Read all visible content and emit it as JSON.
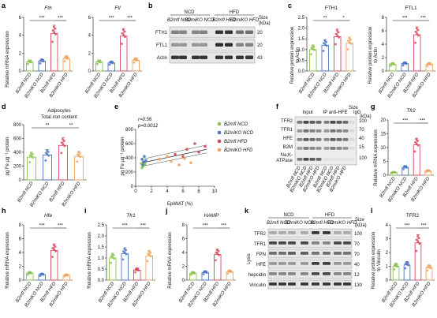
{
  "colors": {
    "green": "#8dc34a",
    "blue": "#4d73c9",
    "red": "#d9475d",
    "orange": "#f1a35e"
  },
  "groups": [
    "B2mfl NCD",
    "B2miKO NCD",
    "B2mfl HFD",
    "B2miKO HFD"
  ],
  "panels": {
    "a": {
      "letter": "a",
      "ylabel": "Relative mRNA expression",
      "p1title": "Fth",
      "p2title": "Ftl",
      "sig": [
        "***",
        "***"
      ]
    },
    "b": {
      "letter": "b",
      "ncd": "NCD",
      "hfd": "HFD",
      "size": "Size",
      "kda": "(kDa)",
      "rows": [
        "FTH1",
        "FTL1",
        "Actin"
      ],
      "sizes": [
        "20",
        "20",
        "43"
      ]
    },
    "c": {
      "letter": "c",
      "ylabel1": "Relative protein expression",
      "ylabel2": "to Actin",
      "p1title": "FTH1",
      "p2title": "FTL1",
      "sig1": [
        "**",
        "*"
      ],
      "sig2": [
        "***",
        "***"
      ]
    },
    "d": {
      "letter": "d",
      "title1": "Adipocytes",
      "title2": "Total iron content",
      "ylabel": "pg Fe μg⁻¹ protein",
      "sig": [
        "**",
        "**"
      ]
    },
    "e": {
      "letter": "e",
      "r": "r=0.56",
      "p": "p=0.0012",
      "ylabel": "pg Fe μg⁻¹ protein",
      "xlabel": "EpiWAT (%)",
      "legend": [
        "B2mfl NCD",
        "B2miKO NCD",
        "B2mfl HFD",
        "B2miKO HFD"
      ]
    },
    "f": {
      "letter": "f",
      "input": "Input",
      "ip": "IP anti-HFE",
      "igg": "IgG",
      "size": "Size",
      "kda": "(kDa)",
      "rows": [
        "TFR2",
        "TFR1",
        "HFE",
        "B2M",
        "Na,K-",
        "ATPase"
      ],
      "sizes": [
        "100",
        "70",
        "40",
        "15",
        "100"
      ]
    },
    "g": {
      "letter": "g",
      "title": "Tfr2",
      "ylabel": "Relative mRNA expression",
      "sig": [
        "***",
        "***"
      ]
    },
    "h": {
      "letter": "h",
      "title": "Hfe",
      "ylabel": "Relative mRNA expression",
      "sig": [
        "***",
        "***"
      ]
    },
    "i": {
      "letter": "i",
      "title": "Tfr1",
      "ylabel": "Relative mRNA expression",
      "sig": [
        "***",
        "***"
      ]
    },
    "j": {
      "letter": "j",
      "title": "HAMP",
      "ylabel": "Relative mRNA expression",
      "sig": [
        "***",
        "***"
      ]
    },
    "k": {
      "letter": "k",
      "ncd": "NCD",
      "hfd": "HFD",
      "size": "Size",
      "kda": "(kDa)",
      "lysis": "Lysis",
      "rows": [
        "TFR2",
        "TFR1",
        "FPN",
        "HFE",
        "hepcidin",
        "Vinculin"
      ],
      "sizes": [
        "100",
        "70",
        "70",
        "40",
        "12",
        "130"
      ]
    },
    "l": {
      "letter": "l",
      "title": "TFR2",
      "ylabel1": "Relative protein expression",
      "ylabel2": "to Vinculin",
      "sig": [
        "***",
        "***"
      ]
    }
  },
  "chart_data": [
    {
      "panel": "a",
      "title": "Fth",
      "type": "bar",
      "categories": [
        "B2mfl NCD",
        "B2miKO NCD",
        "B2mfl HFD",
        "B2miKO HFD"
      ],
      "values": [
        1.0,
        1.1,
        4.2,
        1.4
      ],
      "ylim": [
        0,
        6
      ],
      "yticks": [
        0,
        2,
        4,
        6
      ]
    },
    {
      "panel": "a",
      "title": "Ftl",
      "type": "bar",
      "categories": [
        "B2mfl NCD",
        "B2miKO NCD",
        "B2mfl HFD",
        "B2miKO HFD"
      ],
      "values": [
        1.0,
        0.9,
        3.9,
        1.2
      ],
      "ylim": [
        0,
        6
      ],
      "yticks": [
        0,
        2,
        4,
        6
      ]
    },
    {
      "panel": "c",
      "title": "FTH1",
      "type": "bar",
      "categories": [
        "B2mfl NCD",
        "B2miKO NCD",
        "B2mfl HFD",
        "B2miKO HFD"
      ],
      "values": [
        1.0,
        1.2,
        1.6,
        1.3
      ],
      "ylim": [
        0,
        2.5
      ],
      "yticks": [
        0,
        0.5,
        1.0,
        1.5,
        2.0,
        2.5
      ]
    },
    {
      "panel": "c",
      "title": "FTL1",
      "type": "bar",
      "categories": [
        "B2mfl NCD",
        "B2miKO NCD",
        "B2mfl HFD",
        "B2miKO HFD"
      ],
      "values": [
        1.0,
        1.1,
        5.4,
        1.0
      ],
      "ylim": [
        0,
        8
      ],
      "yticks": [
        0,
        2,
        4,
        6,
        8
      ]
    },
    {
      "panel": "d",
      "type": "bar",
      "categories": [
        "B2mfl NCD",
        "B2miKO NCD",
        "B2mfl HFD",
        "B2miKO HFD"
      ],
      "values": [
        330,
        360,
        500,
        340
      ],
      "ylim": [
        0,
        800
      ],
      "yticks": [
        0,
        200,
        400,
        600,
        800
      ]
    },
    {
      "panel": "e",
      "type": "scatter",
      "xlabel": "EpiWAT (%)",
      "ylabel": "pg Fe μg⁻¹ protein",
      "xlim": [
        0,
        10
      ],
      "ylim": [
        0,
        800
      ],
      "xticks": [
        0,
        2,
        4,
        6,
        8,
        10
      ],
      "yticks": [
        0,
        200,
        400,
        600,
        800
      ]
    },
    {
      "panel": "g",
      "title": "Tfr2",
      "type": "bar",
      "categories": [
        "B2mfl NCD",
        "B2miKO NCD",
        "B2mfl HFD",
        "B2miKO HFD"
      ],
      "values": [
        1.0,
        2.8,
        11,
        1.5
      ],
      "ylim": [
        0,
        20
      ],
      "yticks": [
        0,
        5,
        10,
        15,
        20
      ]
    },
    {
      "panel": "h",
      "title": "Hfe",
      "type": "bar",
      "categories": [
        "B2mfl NCD",
        "B2miKO NCD",
        "B2mfl HFD",
        "B2miKO HFD"
      ],
      "values": [
        1.0,
        0.8,
        4.3,
        0.7
      ],
      "ylim": [
        0,
        8
      ],
      "yticks": [
        0,
        2,
        4,
        6,
        8
      ]
    },
    {
      "panel": "i",
      "title": "Tfr1",
      "type": "bar",
      "categories": [
        "B2mfl NCD",
        "B2miKO NCD",
        "B2mfl HFD",
        "B2miKO HFD"
      ],
      "values": [
        1.0,
        1.2,
        0.45,
        1.1
      ],
      "ylim": [
        0,
        2.5
      ],
      "yticks": [
        0,
        0.5,
        1.0,
        1.5,
        2.0,
        2.5
      ]
    },
    {
      "panel": "j",
      "title": "HAMP",
      "type": "bar",
      "categories": [
        "B2mfl NCD",
        "B2miKO NCD",
        "B2mfl HFD",
        "B2miKO HFD"
      ],
      "values": [
        1.0,
        1.1,
        3.7,
        1.2
      ],
      "ylim": [
        0,
        8
      ],
      "yticks": [
        0,
        2,
        4,
        6,
        8
      ]
    },
    {
      "panel": "l",
      "title": "TFR2",
      "type": "bar",
      "categories": [
        "B2mfl NCD",
        "B2miKO NCD",
        "B2mfl HFD",
        "B2miKO HFD"
      ],
      "values": [
        1.0,
        1.1,
        2.7,
        0.9
      ],
      "ylim": [
        0,
        4
      ],
      "yticks": [
        0,
        1,
        2,
        3,
        4
      ]
    }
  ]
}
